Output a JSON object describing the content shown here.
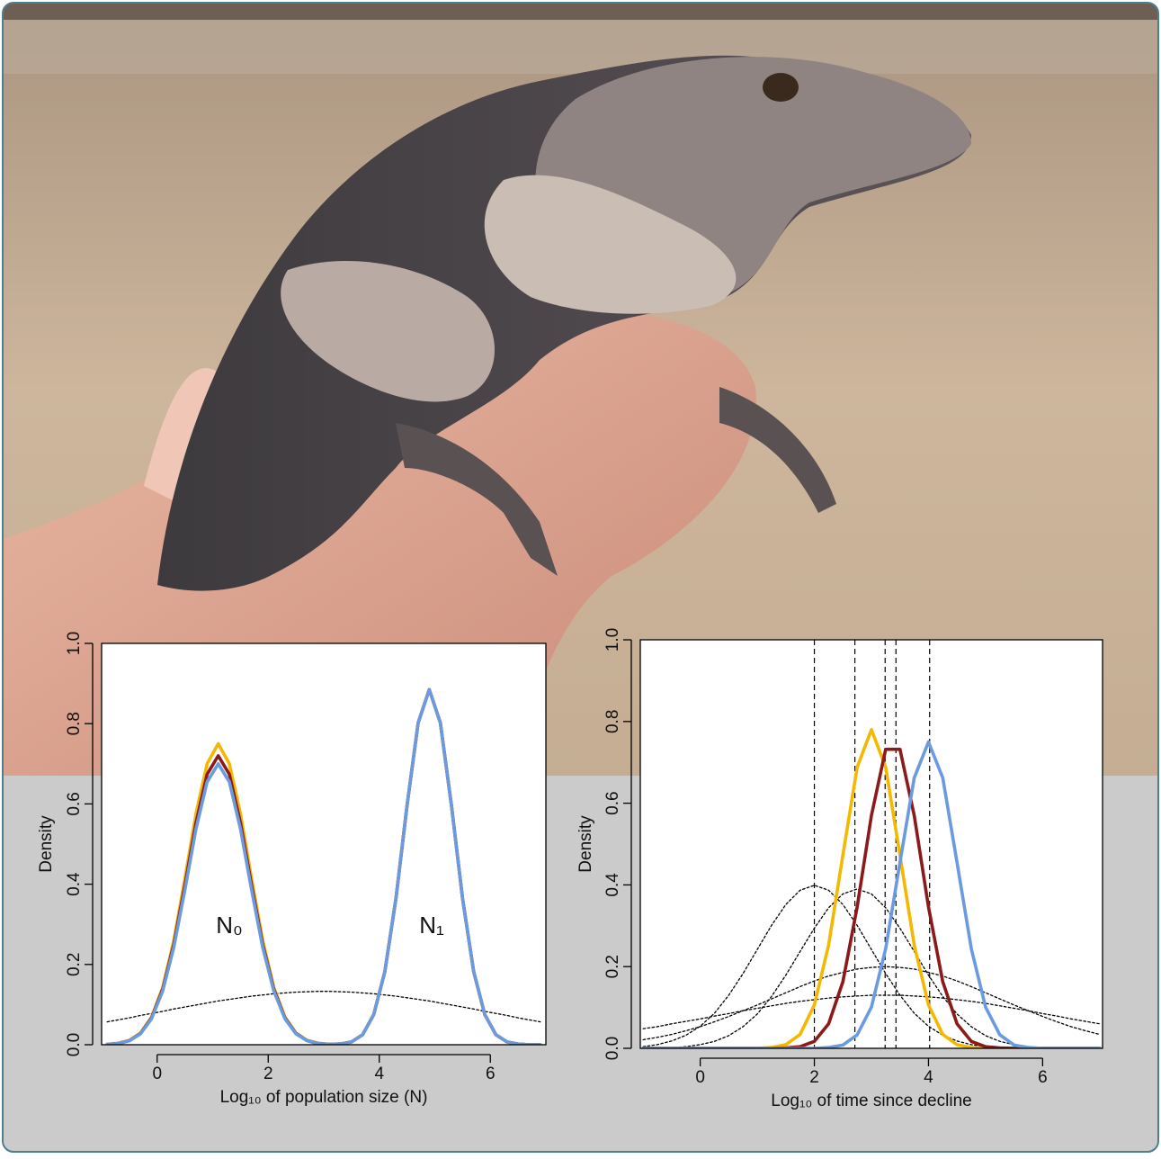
{
  "chart_data": [
    {
      "type": "line",
      "xlabel": "Log₁₀ of population size (N)",
      "ylabel": "Density",
      "annotations": [
        "N₀",
        "N₁"
      ],
      "xlim": [
        -1,
        7
      ],
      "ylim": [
        0,
        1
      ],
      "xticks": [
        0,
        2,
        4,
        6
      ],
      "yticks": [
        {
          "value": 0,
          "label": "0.0"
        },
        0.2,
        0.4,
        0.6,
        0.8,
        {
          "value": 1,
          "label": "1.0"
        }
      ],
      "x": [
        -0.9,
        -0.7,
        -0.5,
        -0.3,
        -0.1,
        0.1,
        0.3,
        0.5,
        0.7,
        0.9,
        1.1,
        1.3,
        1.5,
        1.7,
        1.9,
        2.1,
        2.3,
        2.5,
        2.7,
        2.9,
        3.1,
        3.3,
        3.5,
        3.7,
        3.9,
        4.1,
        4.3,
        4.5,
        4.7,
        4.9,
        5.1,
        5.3,
        5.5,
        5.7,
        5.9,
        6.1,
        6.3,
        6.5,
        6.7,
        6.9
      ],
      "series": [
        {
          "color": "#000000",
          "style": "dotted",
          "values": [
            0.057,
            0.062,
            0.067,
            0.073,
            0.078,
            0.083,
            0.089,
            0.094,
            0.099,
            0.104,
            0.109,
            0.113,
            0.117,
            0.121,
            0.124,
            0.127,
            0.129,
            0.131,
            0.132,
            0.133,
            0.133,
            0.132,
            0.131,
            0.129,
            0.127,
            0.124,
            0.121,
            0.117,
            0.113,
            0.109,
            0.104,
            0.099,
            0.094,
            0.089,
            0.083,
            0.078,
            0.073,
            0.067,
            0.062,
            0.057
          ]
        },
        {
          "color": "#f5b800",
          "style": "solid",
          "values": [
            0.001,
            0.004,
            0.011,
            0.029,
            0.069,
            0.143,
            0.26,
            0.414,
            0.576,
            0.7,
            0.75,
            0.7,
            0.576,
            0.414,
            0.26,
            0.143,
            0.069,
            0.029,
            0.011,
            0.004,
            0.001,
            0.002,
            0.007,
            0.025,
            0.075,
            0.182,
            0.364,
            0.596,
            0.802,
            0.885,
            0.802,
            0.596,
            0.364,
            0.182,
            0.075,
            0.025,
            0.007,
            0.002,
            0,
            0
          ]
        },
        {
          "color": "#8b1a1a",
          "style": "solid",
          "values": [
            0.001,
            0.003,
            0.01,
            0.028,
            0.067,
            0.138,
            0.25,
            0.397,
            0.553,
            0.674,
            0.72,
            0.674,
            0.553,
            0.397,
            0.25,
            0.138,
            0.067,
            0.028,
            0.01,
            0.003,
            0.001,
            0.002,
            0.007,
            0.025,
            0.075,
            0.182,
            0.364,
            0.596,
            0.802,
            0.885,
            0.802,
            0.596,
            0.364,
            0.182,
            0.075,
            0.025,
            0.007,
            0.002,
            0,
            0
          ]
        },
        {
          "color": "#6a9be0",
          "style": "solid",
          "values": [
            0.001,
            0.003,
            0.01,
            0.027,
            0.065,
            0.134,
            0.243,
            0.386,
            0.538,
            0.655,
            0.7,
            0.655,
            0.538,
            0.386,
            0.243,
            0.134,
            0.065,
            0.027,
            0.01,
            0.003,
            0.001,
            0.002,
            0.007,
            0.025,
            0.075,
            0.182,
            0.364,
            0.596,
            0.802,
            0.885,
            0.802,
            0.596,
            0.364,
            0.182,
            0.075,
            0.025,
            0.007,
            0.002,
            0,
            0
          ]
        }
      ]
    },
    {
      "type": "line",
      "xlabel": "Log₁₀ of time since decline",
      "ylabel": "Density",
      "xlim": [
        -1.05,
        7.05
      ],
      "ylim": [
        0,
        1
      ],
      "xticks": [
        0,
        2,
        4,
        6
      ],
      "yticks": [
        {
          "value": 0,
          "label": "0.0"
        },
        0.2,
        0.4,
        0.6,
        0.8,
        {
          "value": 1,
          "label": "1.0"
        }
      ],
      "vlines": [
        2.0,
        2.71,
        3.24,
        3.43,
        4.02
      ],
      "x": [
        -1,
        -0.75,
        -0.5,
        -0.25,
        0,
        0.25,
        0.5,
        0.75,
        1,
        1.25,
        1.5,
        1.75,
        2,
        2.25,
        2.5,
        2.75,
        3,
        3.25,
        3.5,
        3.75,
        4,
        4.25,
        4.5,
        4.75,
        5,
        5.25,
        5.5,
        5.75,
        6,
        6.25,
        6.5,
        6.75,
        7
      ],
      "series": [
        {
          "color": "#000000",
          "style": "dotted",
          "values": [
            0.004,
            0.009,
            0.018,
            0.032,
            0.054,
            0.086,
            0.13,
            0.183,
            0.242,
            0.301,
            0.352,
            0.387,
            0.399,
            0.387,
            0.352,
            0.301,
            0.242,
            0.183,
            0.13,
            0.086,
            0.054,
            0.032,
            0.018,
            0.009,
            0.004,
            0.002,
            0.001,
            0,
            0,
            0,
            0,
            0,
            0
          ]
        },
        {
          "color": "#000000",
          "style": "dotted",
          "values": [
            0,
            0.001,
            0.002,
            0.004,
            0.009,
            0.017,
            0.031,
            0.053,
            0.084,
            0.127,
            0.179,
            0.237,
            0.294,
            0.344,
            0.378,
            0.39,
            0.378,
            0.344,
            0.294,
            0.237,
            0.179,
            0.127,
            0.084,
            0.053,
            0.031,
            0.017,
            0.009,
            0.004,
            0.002,
            0.001,
            0,
            0,
            0
          ]
        },
        {
          "color": "#000000",
          "style": "dotted",
          "values": [
            0.021,
            0.027,
            0.034,
            0.043,
            0.053,
            0.065,
            0.078,
            0.092,
            0.106,
            0.121,
            0.136,
            0.151,
            0.165,
            0.177,
            0.186,
            0.194,
            0.198,
            0.2,
            0.198,
            0.194,
            0.186,
            0.177,
            0.165,
            0.151,
            0.136,
            0.121,
            0.106,
            0.092,
            0.078,
            0.065,
            0.053,
            0.043,
            0.034
          ]
        },
        {
          "color": "#000000",
          "style": "dotted",
          "values": [
            0.048,
            0.053,
            0.06,
            0.066,
            0.072,
            0.079,
            0.085,
            0.092,
            0.098,
            0.104,
            0.11,
            0.115,
            0.119,
            0.123,
            0.126,
            0.128,
            0.13,
            0.13,
            0.13,
            0.128,
            0.126,
            0.123,
            0.119,
            0.115,
            0.11,
            0.104,
            0.098,
            0.092,
            0.085,
            0.079,
            0.072,
            0.066,
            0.06
          ]
        },
        {
          "color": "#f5b800",
          "style": "solid",
          "values": [
            0,
            0,
            0,
            0,
            0,
            0,
            0,
            0,
            0,
            0.002,
            0.009,
            0.034,
            0.106,
            0.253,
            0.473,
            0.688,
            0.78,
            0.688,
            0.473,
            0.253,
            0.106,
            0.034,
            0.009,
            0.002,
            0,
            0,
            0,
            0,
            0,
            0,
            0,
            0,
            0
          ]
        },
        {
          "color": "#8b1a1a",
          "style": "solid",
          "values": [
            0,
            0,
            0,
            0,
            0,
            0,
            0,
            0,
            0,
            0,
            0.001,
            0.004,
            0.017,
            0.06,
            0.163,
            0.346,
            0.57,
            0.732,
            0.732,
            0.57,
            0.346,
            0.163,
            0.06,
            0.017,
            0.004,
            0.001,
            0,
            0,
            0,
            0,
            0,
            0,
            0
          ]
        },
        {
          "color": "#6a9be0",
          "style": "solid",
          "values": [
            0,
            0,
            0,
            0,
            0,
            0,
            0,
            0,
            0,
            0,
            0,
            0,
            0,
            0.002,
            0.008,
            0.033,
            0.101,
            0.244,
            0.455,
            0.662,
            0.75,
            0.662,
            0.455,
            0.244,
            0.101,
            0.033,
            0.008,
            0.002,
            0,
            0,
            0,
            0,
            0
          ]
        }
      ]
    }
  ]
}
